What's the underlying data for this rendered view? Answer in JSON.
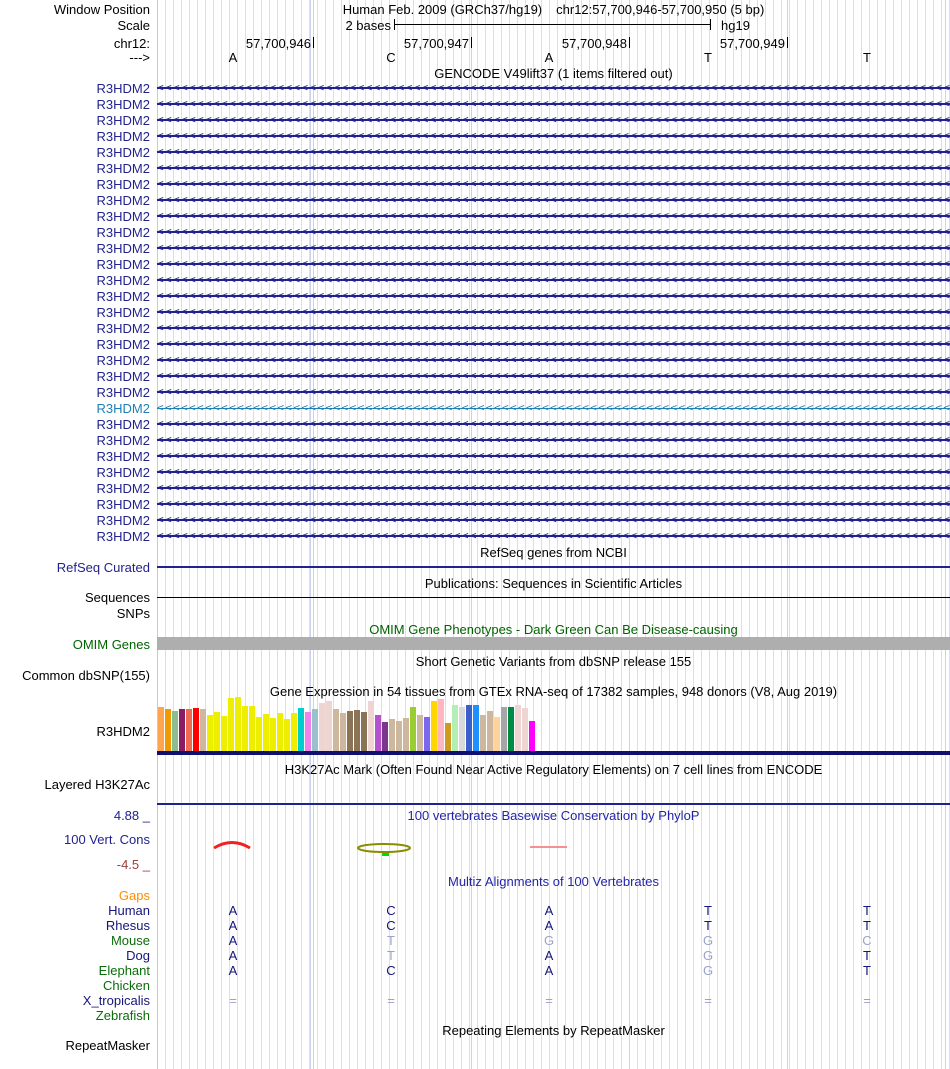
{
  "header": {
    "row1_left": "Window Position",
    "assembly": "Human Feb. 2009 (GRCh37/hg19)",
    "position": "chr12:57,700,946-57,700,950 (5 bp)",
    "row2_left": "Scale",
    "scale_value": "2 bases",
    "scale_genome": "hg19",
    "chrom": "chr12:",
    "coords": [
      "57,700,946",
      "57,700,947",
      "57,700,948",
      "57,700,949"
    ],
    "strand": "--->",
    "sequence": [
      "A",
      "C",
      "A",
      "T",
      "T"
    ]
  },
  "tracks": {
    "gencode": {
      "title": "GENCODE V49lift37 (1 items filtered out)",
      "gene": "R3HDM2",
      "row_count": 29,
      "highlight_index": 20
    },
    "refseq": {
      "title": "RefSeq genes from NCBI",
      "label": "RefSeq Curated"
    },
    "publications": {
      "title": "Publications: Sequences in Scientific Articles",
      "label": "Sequences"
    },
    "snps": {
      "label": "SNPs"
    },
    "omim": {
      "title": "OMIM Gene Phenotypes - Dark Green Can Be Disease-causing",
      "label": "OMIM Genes"
    },
    "dbsnp": {
      "title": "Short Genetic Variants from dbSNP release 155",
      "label": "Common dbSNP(155)"
    },
    "gtex": {
      "title": "Gene Expression in 54 tissues from GTEx RNA-seq of 17382 samples, 948 donors (V8, Aug 2019)",
      "label": "R3HDM2",
      "bars": [
        [
          "#FFA54F",
          44
        ],
        [
          "#EE9A00",
          42
        ],
        [
          "#8FBC8F",
          40
        ],
        [
          "#8B1C62",
          42
        ],
        [
          "#EE6A50",
          42
        ],
        [
          "#FF0000",
          43
        ],
        [
          "#CDB79E",
          42
        ],
        [
          "#EEEE00",
          36
        ],
        [
          "#EEEE00",
          39
        ],
        [
          "#EEEE00",
          35
        ],
        [
          "#EEEE00",
          53
        ],
        [
          "#EEEE00",
          54
        ],
        [
          "#EEEE00",
          45
        ],
        [
          "#EEEE00",
          45
        ],
        [
          "#EEEE00",
          34
        ],
        [
          "#EEEE00",
          37
        ],
        [
          "#EEEE00",
          33
        ],
        [
          "#EEEE00",
          38
        ],
        [
          "#EEEE00",
          32
        ],
        [
          "#EEEE00",
          38
        ],
        [
          "#00CDCD",
          43
        ],
        [
          "#EE82EE",
          39
        ],
        [
          "#9AC0CD",
          42
        ],
        [
          "#EED5D2",
          48
        ],
        [
          "#EED5D2",
          50
        ],
        [
          "#CDB79E",
          42
        ],
        [
          "#CDB79E",
          38
        ],
        [
          "#8B7355",
          40
        ],
        [
          "#8B7355",
          41
        ],
        [
          "#8B7355",
          39
        ],
        [
          "#EED5D2",
          50
        ],
        [
          "#B452CD",
          36
        ],
        [
          "#7A378B",
          29
        ],
        [
          "#CDB79E",
          32
        ],
        [
          "#CDB79E",
          30
        ],
        [
          "#CDB79E",
          33
        ],
        [
          "#9ACD32",
          44
        ],
        [
          "#CDB79E",
          36
        ],
        [
          "#7A67EE",
          34
        ],
        [
          "#FFD700",
          50
        ],
        [
          "#FFB6C1",
          52
        ],
        [
          "#CD9B1D",
          28
        ],
        [
          "#B4EEB4",
          46
        ],
        [
          "#D9D9D9",
          44
        ],
        [
          "#3A5FCD",
          46
        ],
        [
          "#1E90FF",
          46
        ],
        [
          "#CDB79E",
          36
        ],
        [
          "#CDB79E",
          40
        ],
        [
          "#FFD39B",
          34
        ],
        [
          "#A6A6A6",
          44
        ],
        [
          "#008B45",
          44
        ],
        [
          "#EED5D2",
          46
        ],
        [
          "#EED5D2",
          43
        ],
        [
          "#FF00FF",
          30
        ]
      ]
    },
    "h3k27ac": {
      "title": "H3K27Ac Mark (Often Found Near Active Regulatory Elements) on 7 cell lines from ENCODE",
      "label": "Layered H3K27Ac"
    },
    "phylop": {
      "title": "100 vertebrates Basewise Conservation by PhyloP",
      "label": "100 Vert. Cons",
      "max_label": "4.88 _",
      "min_label": "-4.5 _"
    },
    "multiz": {
      "title": "Multiz Alignments of 100 Vertebrates",
      "gaps_label": "Gaps",
      "species": [
        {
          "name": "Human",
          "label_color": "#15157a",
          "bases": [
            [
              "A",
              0
            ],
            [
              "C",
              0
            ],
            [
              "A",
              0
            ],
            [
              "T",
              0
            ],
            [
              "T",
              0
            ]
          ]
        },
        {
          "name": "Rhesus",
          "label_color": "#15157a",
          "bases": [
            [
              "A",
              0
            ],
            [
              "C",
              0
            ],
            [
              "A",
              0
            ],
            [
              "T",
              0
            ],
            [
              "T",
              0
            ]
          ]
        },
        {
          "name": "Mouse",
          "label_color": "#0b6c0b",
          "bases": [
            [
              "A",
              0
            ],
            [
              "T",
              1
            ],
            [
              "G",
              1
            ],
            [
              "G",
              1
            ],
            [
              "C",
              1
            ]
          ]
        },
        {
          "name": "Dog",
          "label_color": "#15157a",
          "bases": [
            [
              "A",
              0
            ],
            [
              "T",
              1
            ],
            [
              "A",
              0
            ],
            [
              "G",
              1
            ],
            [
              "T",
              0
            ]
          ]
        },
        {
          "name": "Elephant",
          "label_color": "#0b6c0b",
          "bases": [
            [
              "A",
              0
            ],
            [
              "C",
              0
            ],
            [
              "A",
              0
            ],
            [
              "G",
              1
            ],
            [
              "T",
              0
            ]
          ]
        },
        {
          "name": "Chicken",
          "label_color": "#0b6c0b",
          "bases": []
        },
        {
          "name": "X_tropicalis",
          "label_color": "#15157a",
          "bases": [
            [
              "=",
              1
            ],
            [
              "=",
              1
            ],
            [
              "=",
              1
            ],
            [
              "=",
              1
            ],
            [
              "=",
              1
            ]
          ]
        },
        {
          "name": "Zebrafish",
          "label_color": "#0b6c0b",
          "bases": []
        }
      ]
    },
    "repeatmasker": {
      "title": "Repeating Elements by RepeatMasker",
      "label": "RepeatMasker"
    }
  },
  "palette": {
    "gene_navy": "#22228e",
    "highlight_transcript_teal": "#2080b5",
    "title_blue": "#2424a8",
    "omim_dark_green": "#006400",
    "species_green": "#0b6c0b",
    "gaps_orange": "#ff8c00",
    "base_navy": "#15157a",
    "base_muted": "#99a3c9",
    "omim_gray": "#aeaeae",
    "guideline_pink": "#ffb5b5",
    "stripe_minor": "#dcdcf2",
    "stripe_major": "#c9d3ee",
    "phylop_min_red": "#994040",
    "baseline_navy": "#10106e"
  }
}
